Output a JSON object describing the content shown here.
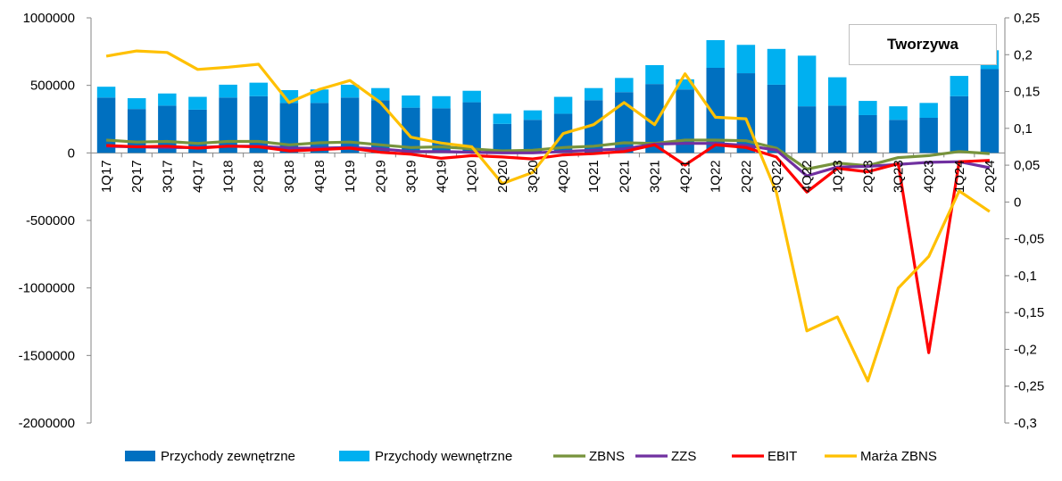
{
  "chart_data": {
    "type": "bar",
    "title": "Tworzywa",
    "categories": [
      "1Q17",
      "2Q17",
      "3Q17",
      "4Q17",
      "1Q18",
      "2Q18",
      "3Q18",
      "4Q18",
      "1Q19",
      "2Q19",
      "3Q19",
      "4Q19",
      "1Q20",
      "2Q20",
      "3Q20",
      "4Q20",
      "1Q21",
      "2Q21",
      "3Q21",
      "4Q21",
      "1Q22",
      "2Q22",
      "3Q22",
      "4Q22",
      "1Q23",
      "2Q23",
      "3Q23",
      "4Q23",
      "1Q24",
      "2Q24"
    ],
    "y_left": {
      "ylim": [
        -2000000,
        1000000
      ],
      "ticks": [
        "1000000",
        "500000",
        "0",
        "-500000",
        "-1000000",
        "-1500000",
        "-2000000"
      ],
      "tick_values": [
        1000000,
        500000,
        0,
        -500000,
        -1000000,
        -1500000,
        -2000000
      ]
    },
    "y_right": {
      "ylim": [
        -0.3,
        0.25
      ],
      "ticks": [
        "0,25",
        "0,2",
        "0,15",
        "0,1",
        "0,05",
        "0",
        "-0,05",
        "-0,1",
        "-0,15",
        "-0,2",
        "-0,25",
        "-0,3"
      ],
      "tick_values": [
        0.25,
        0.2,
        0.15,
        0.1,
        0.05,
        0,
        -0.05,
        -0.1,
        -0.15,
        -0.2,
        -0.25,
        -0.3
      ]
    },
    "bar_series": [
      {
        "name": "Przychody zewnętrzne",
        "color": "#0070c0",
        "axis": "left",
        "values": [
          410000,
          325000,
          350000,
          320000,
          410000,
          420000,
          370000,
          370000,
          410000,
          390000,
          335000,
          330000,
          375000,
          215000,
          245000,
          290000,
          390000,
          450000,
          510000,
          470000,
          630000,
          590000,
          505000,
          345000,
          350000,
          280000,
          245000,
          260000,
          420000,
          620000
        ]
      },
      {
        "name": "Przychody wewnętrzne",
        "color": "#00b0f0",
        "axis": "left",
        "values": [
          80000,
          80000,
          90000,
          95000,
          95000,
          100000,
          95000,
          100000,
          95000,
          90000,
          90000,
          90000,
          85000,
          75000,
          70000,
          125000,
          90000,
          105000,
          140000,
          75000,
          205000,
          210000,
          265000,
          375000,
          210000,
          105000,
          100000,
          110000,
          150000,
          140000
        ]
      }
    ],
    "line_series": [
      {
        "name": "ZBNS",
        "color": "#77933c",
        "axis": "left",
        "values": [
          95000,
          80000,
          85000,
          70000,
          85000,
          85000,
          60000,
          75000,
          80000,
          60000,
          40000,
          45000,
          30000,
          15000,
          20000,
          40000,
          50000,
          75000,
          70000,
          95000,
          95000,
          90000,
          35000,
          -120000,
          -75000,
          -95000,
          -35000,
          -20000,
          10000,
          -5000
        ]
      },
      {
        "name": "ZZS",
        "color": "#7030a0",
        "axis": "left",
        "values": [
          50000,
          45000,
          40000,
          40000,
          50000,
          50000,
          35000,
          35000,
          40000,
          30000,
          10000,
          10000,
          5000,
          0,
          0,
          10000,
          20000,
          30000,
          65000,
          70000,
          70000,
          55000,
          20000,
          -170000,
          -105000,
          -100000,
          -85000,
          -70000,
          -65000,
          -110000
        ]
      },
      {
        "name": "EBIT",
        "color": "#ff0000",
        "axis": "left",
        "values": [
          55000,
          45000,
          50000,
          35000,
          50000,
          45000,
          15000,
          25000,
          35000,
          5000,
          -10000,
          -40000,
          -20000,
          -30000,
          -45000,
          -15000,
          -5000,
          10000,
          60000,
          -90000,
          60000,
          40000,
          -30000,
          -290000,
          -115000,
          -140000,
          -80000,
          -1480000,
          -65000,
          -55000
        ]
      },
      {
        "name": "Marża ZBNS",
        "color": "#ffc000",
        "axis": "right",
        "values": [
          0.198,
          0.205,
          0.203,
          0.18,
          0.183,
          0.187,
          0.135,
          0.153,
          0.165,
          0.135,
          0.088,
          0.08,
          0.075,
          0.025,
          0.04,
          0.093,
          0.105,
          0.135,
          0.105,
          0.174,
          0.115,
          0.113,
          0.013,
          -0.175,
          -0.156,
          -0.243,
          -0.117,
          -0.074,
          0.015,
          -0.013
        ]
      }
    ],
    "grid": false,
    "legend_position": "bottom"
  },
  "legend": [
    {
      "label": "Przychody zewnętrzne",
      "kind": "box",
      "color": "#0070c0"
    },
    {
      "label": "Przychody wewnętrzne",
      "kind": "box",
      "color": "#00b0f0"
    },
    {
      "label": "ZBNS",
      "kind": "line",
      "color": "#77933c"
    },
    {
      "label": "ZZS",
      "kind": "line",
      "color": "#7030a0"
    },
    {
      "label": "EBIT",
      "kind": "line",
      "color": "#ff0000"
    },
    {
      "label": "Marża ZBNS",
      "kind": "line",
      "color": "#ffc000"
    }
  ]
}
